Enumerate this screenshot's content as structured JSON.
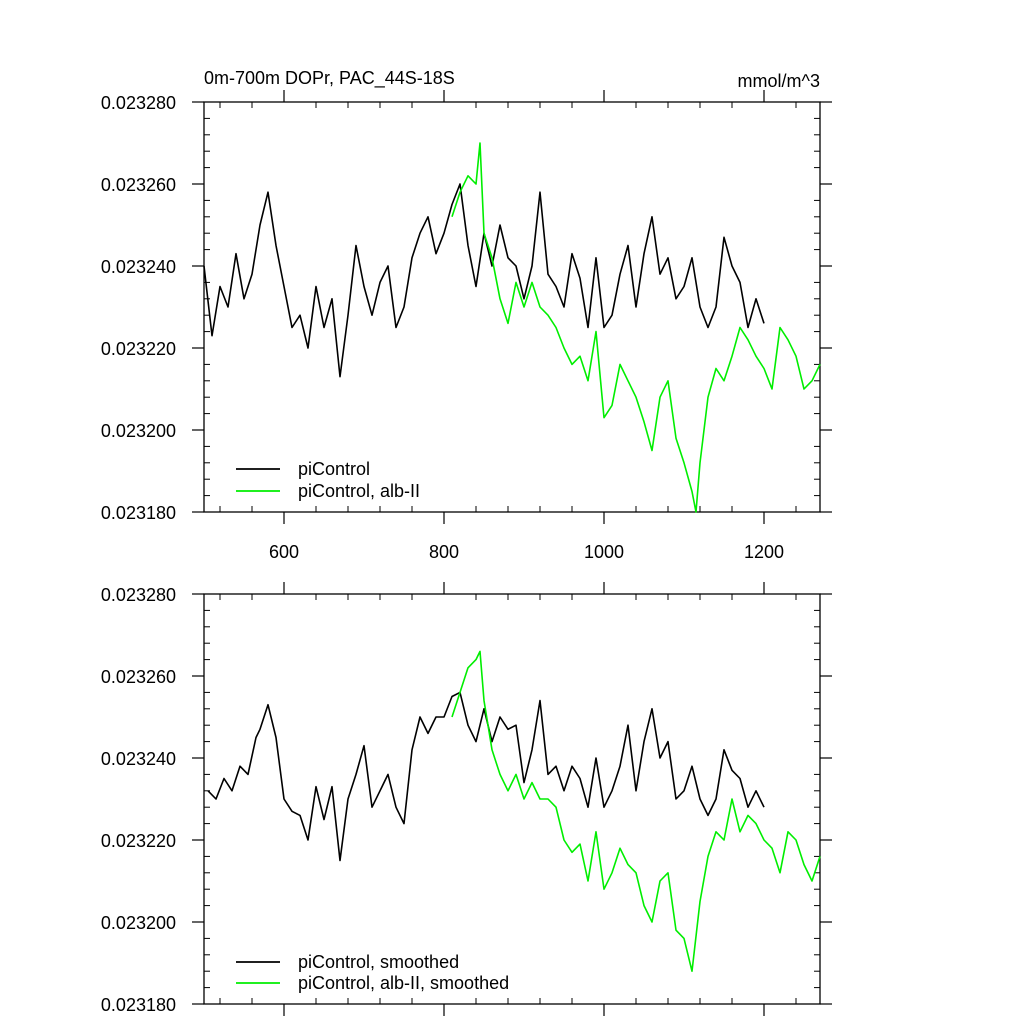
{
  "chart_data": [
    {
      "type": "line",
      "title": "0m-700m DOPr, PAC_44S-18S",
      "units": "mmol/m^3",
      "xlim": [
        500,
        1270
      ],
      "ylim": [
        0.02318,
        0.02328
      ],
      "x_ticks": [
        600,
        800,
        1000,
        1200
      ],
      "x_tick_labels": [
        "600",
        "800",
        "1000",
        "1200"
      ],
      "y_ticks": [
        0.02318,
        0.0232,
        0.02322,
        0.02324,
        0.02326,
        0.02328
      ],
      "y_tick_labels": [
        "0.023180",
        "0.023200",
        "0.023220",
        "0.023240",
        "0.023260",
        "0.023280"
      ],
      "legend_position": "bottom-left",
      "series": [
        {
          "name": "piControl",
          "color": "#000000",
          "x": [
            500,
            510,
            520,
            530,
            540,
            550,
            560,
            570,
            580,
            590,
            600,
            610,
            620,
            630,
            640,
            650,
            660,
            670,
            680,
            690,
            700,
            710,
            720,
            730,
            740,
            750,
            760,
            770,
            780,
            790,
            800,
            810,
            820,
            830,
            840,
            850,
            860,
            870,
            880,
            890,
            900,
            910,
            920,
            930,
            940,
            950,
            960,
            970,
            980,
            990,
            1000,
            1010,
            1020,
            1030,
            1040,
            1050,
            1060,
            1070,
            1080,
            1090,
            1100,
            1110,
            1120,
            1130,
            1140,
            1150,
            1160,
            1170,
            1180,
            1190,
            1200
          ],
          "y": [
            0.02324,
            0.023223,
            0.023235,
            0.02323,
            0.023243,
            0.023232,
            0.023238,
            0.02325,
            0.023258,
            0.023245,
            0.023235,
            0.023225,
            0.023228,
            0.02322,
            0.023235,
            0.023225,
            0.023232,
            0.023213,
            0.023228,
            0.023245,
            0.023235,
            0.023228,
            0.023236,
            0.02324,
            0.023225,
            0.02323,
            0.023242,
            0.023248,
            0.023252,
            0.023243,
            0.023248,
            0.023255,
            0.02326,
            0.023245,
            0.023235,
            0.023248,
            0.02324,
            0.02325,
            0.023242,
            0.02324,
            0.023232,
            0.02324,
            0.023258,
            0.023238,
            0.023235,
            0.02323,
            0.023243,
            0.023237,
            0.023225,
            0.023242,
            0.023225,
            0.023228,
            0.023238,
            0.023245,
            0.02323,
            0.023243,
            0.023252,
            0.023238,
            0.023242,
            0.023232,
            0.023235,
            0.023242,
            0.02323,
            0.023225,
            0.02323,
            0.023247,
            0.02324,
            0.023236,
            0.023225,
            0.023232,
            0.023226
          ]
        },
        {
          "name": "piControl, alb-II",
          "color": "#00ee00",
          "x": [
            810,
            820,
            830,
            840,
            845,
            850,
            860,
            870,
            880,
            890,
            900,
            910,
            920,
            930,
            940,
            950,
            960,
            970,
            980,
            990,
            1000,
            1010,
            1020,
            1030,
            1040,
            1050,
            1060,
            1070,
            1080,
            1090,
            1100,
            1110,
            1115,
            1120,
            1130,
            1140,
            1150,
            1160,
            1170,
            1180,
            1190,
            1200,
            1210,
            1220,
            1230,
            1240,
            1250,
            1260,
            1270
          ],
          "y": [
            0.023252,
            0.023258,
            0.023262,
            0.02326,
            0.02327,
            0.023248,
            0.023242,
            0.023232,
            0.023226,
            0.023236,
            0.02323,
            0.023236,
            0.02323,
            0.023228,
            0.023225,
            0.02322,
            0.023216,
            0.023218,
            0.023212,
            0.023224,
            0.023203,
            0.023206,
            0.023216,
            0.023212,
            0.023208,
            0.023202,
            0.023195,
            0.023208,
            0.023212,
            0.023198,
            0.023192,
            0.023185,
            0.02318,
            0.023192,
            0.023208,
            0.023215,
            0.023212,
            0.023218,
            0.023225,
            0.023222,
            0.023218,
            0.023215,
            0.02321,
            0.023225,
            0.023222,
            0.023218,
            0.02321,
            0.023212,
            0.023216
          ]
        }
      ]
    },
    {
      "type": "line",
      "title": "",
      "xlim": [
        500,
        1270
      ],
      "ylim": [
        0.02318,
        0.02328
      ],
      "x_ticks": [
        600,
        800,
        1000,
        1200
      ],
      "y_ticks": [
        0.02318,
        0.0232,
        0.02322,
        0.02324,
        0.02326,
        0.02328
      ],
      "y_tick_labels": [
        "0.023180",
        "0.023200",
        "0.023220",
        "0.023240",
        "0.023260",
        "0.023280"
      ],
      "legend_position": "bottom-left",
      "series": [
        {
          "name": "piControl, smoothed",
          "color": "#000000",
          "x": [
            505,
            515,
            525,
            535,
            545,
            555,
            565,
            570,
            580,
            590,
            600,
            610,
            620,
            630,
            640,
            650,
            660,
            670,
            680,
            690,
            700,
            710,
            720,
            730,
            740,
            750,
            760,
            770,
            780,
            790,
            800,
            810,
            820,
            830,
            840,
            850,
            860,
            870,
            880,
            890,
            900,
            910,
            920,
            930,
            940,
            950,
            960,
            970,
            980,
            990,
            1000,
            1010,
            1020,
            1030,
            1040,
            1050,
            1060,
            1070,
            1080,
            1090,
            1100,
            1110,
            1120,
            1130,
            1140,
            1150,
            1160,
            1170,
            1180,
            1190,
            1200
          ],
          "y": [
            0.023232,
            0.02323,
            0.023235,
            0.023232,
            0.023238,
            0.023236,
            0.023245,
            0.023247,
            0.023253,
            0.023245,
            0.02323,
            0.023227,
            0.023226,
            0.02322,
            0.023233,
            0.023225,
            0.023233,
            0.023215,
            0.02323,
            0.023236,
            0.023243,
            0.023228,
            0.023232,
            0.023236,
            0.023228,
            0.023224,
            0.023242,
            0.02325,
            0.023246,
            0.02325,
            0.02325,
            0.023255,
            0.023256,
            0.023248,
            0.023244,
            0.023252,
            0.023244,
            0.02325,
            0.023247,
            0.023248,
            0.023234,
            0.023242,
            0.023254,
            0.023236,
            0.023238,
            0.023232,
            0.023238,
            0.023235,
            0.023228,
            0.02324,
            0.023228,
            0.023232,
            0.023238,
            0.023248,
            0.023232,
            0.023244,
            0.023252,
            0.02324,
            0.023244,
            0.02323,
            0.023232,
            0.023238,
            0.02323,
            0.023226,
            0.02323,
            0.023242,
            0.023237,
            0.023235,
            0.023228,
            0.023232,
            0.023228
          ]
        },
        {
          "name": "piControl, alb-II, smoothed",
          "color": "#00ee00",
          "x": [
            810,
            820,
            830,
            840,
            845,
            850,
            860,
            870,
            880,
            890,
            900,
            910,
            920,
            930,
            940,
            950,
            960,
            970,
            980,
            990,
            1000,
            1010,
            1020,
            1030,
            1040,
            1050,
            1060,
            1070,
            1080,
            1090,
            1100,
            1110,
            1120,
            1130,
            1140,
            1150,
            1160,
            1170,
            1180,
            1190,
            1200,
            1210,
            1220,
            1230,
            1240,
            1250,
            1260,
            1270
          ],
          "y": [
            0.02325,
            0.023256,
            0.023262,
            0.023264,
            0.023266,
            0.023254,
            0.023242,
            0.023236,
            0.023232,
            0.023236,
            0.02323,
            0.023234,
            0.02323,
            0.02323,
            0.023228,
            0.02322,
            0.023217,
            0.023219,
            0.02321,
            0.023222,
            0.023208,
            0.023212,
            0.023218,
            0.023214,
            0.023212,
            0.023204,
            0.0232,
            0.02321,
            0.023212,
            0.023198,
            0.023196,
            0.023188,
            0.023205,
            0.023216,
            0.023222,
            0.02322,
            0.02323,
            0.023222,
            0.023226,
            0.023224,
            0.02322,
            0.023218,
            0.023212,
            0.023222,
            0.02322,
            0.023214,
            0.02321,
            0.023216
          ]
        }
      ]
    }
  ]
}
